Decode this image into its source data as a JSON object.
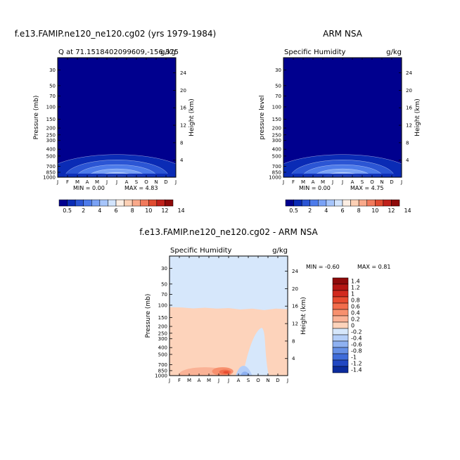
{
  "panels": [
    {
      "id": "model",
      "title": "f.e13.FAMIP.ne120_ne120.cg02 (yrs 1979-1984)",
      "left_label": "Q at 71.1518402099609,-156.375",
      "right_label": "g/kg",
      "ylabel": "Pressure (mb)",
      "y2label": "Height (km)",
      "min_text": "MIN =    0.00",
      "max_text": "MAX =    4.83"
    },
    {
      "id": "obs",
      "title": "ARM NSA",
      "left_label": "Specific Humidity",
      "right_label": "g/kg",
      "ylabel": "pressure level",
      "y2label": "Height (km)",
      "min_text": "MIN =    0.00",
      "max_text": "MAX =    4.75"
    },
    {
      "id": "diff",
      "title": "f.e13.FAMIP.ne120_ne120.cg02 - ARM NSA",
      "left_label": "Specific Humidity",
      "right_label": "g/kg",
      "ylabel": "Pressure (mb)",
      "y2label": "Height (km)",
      "min_text": "MIN =   -0.60",
      "max_text": "MAX =    0.81"
    }
  ],
  "colorbar_abs": {
    "labels": [
      "0.5",
      "2",
      "4",
      "6",
      "8",
      "10",
      "12",
      "14"
    ],
    "colors": [
      "#00008e",
      "#0a2bb5",
      "#2b55d4",
      "#4d7bea",
      "#7aa2f5",
      "#a6c5fb",
      "#d2e4fd",
      "#fdeee3",
      "#fdd0b5",
      "#f9a98a",
      "#f17a5c",
      "#e04b30",
      "#c0211b",
      "#8e0a0a"
    ]
  },
  "colorbar_diff": {
    "labels": [
      "1.4",
      "1.2",
      "1",
      "0.8",
      "0.6",
      "0.4",
      "0.2",
      "0",
      "-0.2",
      "-0.4",
      "-0.6",
      "-0.8",
      "-1",
      "-1.2",
      "-1.4"
    ],
    "colors": [
      "#8e0a0a",
      "#b41512",
      "#d22a1e",
      "#e84c30",
      "#f26d4c",
      "#f7906e",
      "#fab296",
      "#fdd3bb",
      "#d6e7fb",
      "#b4cef8",
      "#8eb1f1",
      "#6690e6",
      "#3f6cd9",
      "#2147c2",
      "#0b2b9c"
    ]
  },
  "chart_data": [
    {
      "type": "heatmap",
      "title": "Q at 71.1518402099609,-156.375",
      "units": "g/kg",
      "x": [
        "J",
        "F",
        "M",
        "A",
        "M",
        "J",
        "J",
        "A",
        "S",
        "O",
        "N",
        "D",
        "J"
      ],
      "y_pressure_ticks": [
        30,
        50,
        70,
        100,
        150,
        200,
        250,
        300,
        400,
        500,
        700,
        850,
        1000
      ],
      "y_height_ticks_km": [
        4,
        8,
        12,
        16,
        20,
        24
      ],
      "ylim_mb": [
        1000,
        20
      ],
      "min": 0.0,
      "max": 4.83,
      "contour_levels": [
        0.5,
        1.5,
        2.5,
        3.5,
        4.5
      ],
      "peak_value": 4.83,
      "peak_month": "J"
    },
    {
      "type": "heatmap",
      "title": "ARM NSA",
      "units": "g/kg",
      "x": [
        "J",
        "F",
        "M",
        "A",
        "M",
        "J",
        "J",
        "A",
        "S",
        "O",
        "N",
        "D",
        "J"
      ],
      "y_pressure_ticks": [
        30,
        50,
        70,
        100,
        150,
        200,
        250,
        300,
        400,
        500,
        700,
        850,
        1000
      ],
      "y_height_ticks_km": [
        4,
        8,
        12,
        16,
        20,
        24
      ],
      "ylim_mb": [
        1000,
        20
      ],
      "min": 0.0,
      "max": 4.75,
      "contour_levels": [
        0.5,
        1.5,
        2.5,
        3.5,
        4.5
      ],
      "peak_value": 4.75,
      "peak_month": "J"
    },
    {
      "type": "heatmap",
      "title": "f.e13.FAMIP.ne120_ne120.cg02 - ARM NSA",
      "units": "g/kg",
      "x": [
        "J",
        "F",
        "M",
        "A",
        "M",
        "J",
        "J",
        "A",
        "S",
        "O",
        "N",
        "D",
        "J"
      ],
      "y_pressure_ticks": [
        30,
        50,
        70,
        100,
        150,
        200,
        250,
        300,
        400,
        500,
        700,
        850,
        1000
      ],
      "y_height_ticks_km": [
        4,
        8,
        12,
        16,
        20,
        24
      ],
      "ylim_mb": [
        1000,
        20
      ],
      "min": -0.6,
      "max": 0.81,
      "levels": [
        -1.4,
        -1.2,
        -1,
        -0.8,
        -0.6,
        -0.4,
        -0.2,
        0,
        0.2,
        0.4,
        0.6,
        0.8,
        1,
        1.2,
        1.4
      ]
    }
  ]
}
